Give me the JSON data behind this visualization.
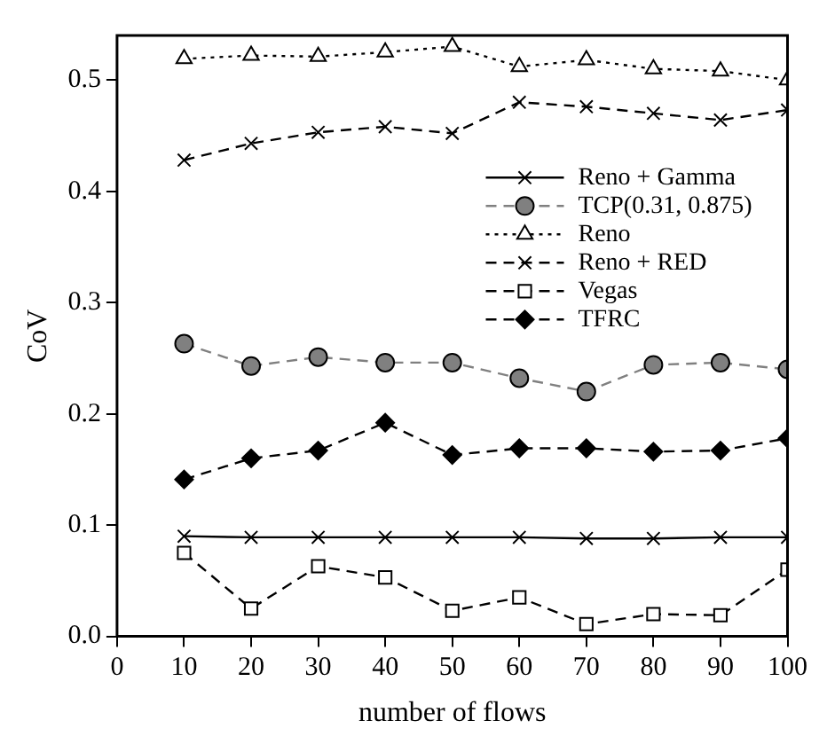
{
  "chart_data": {
    "type": "line",
    "xlabel": "number of flows",
    "ylabel": "CoV",
    "x": [
      10,
      20,
      30,
      40,
      50,
      60,
      70,
      80,
      90,
      100
    ],
    "xlim": [
      0,
      100
    ],
    "xticks": [
      0,
      10,
      20,
      30,
      40,
      50,
      60,
      70,
      80,
      90,
      100
    ],
    "ylim": [
      0,
      0.54
    ],
    "yticks": [
      {
        "value": 0,
        "label": "0.0"
      },
      {
        "value": 0.1,
        "label": "0.1"
      },
      {
        "value": 0.2,
        "label": "0.2"
      },
      {
        "value": 0.3,
        "label": "0.3"
      },
      {
        "value": 0.4,
        "label": "0.4"
      },
      {
        "value": 0.5,
        "label": "0.5"
      }
    ],
    "grid": false,
    "legend": "right",
    "series": [
      {
        "name": "Reno + Gamma",
        "color": "#000000",
        "marker": "cross",
        "line_style": "solid",
        "values": [
          0.09,
          0.089,
          0.089,
          0.089,
          0.089,
          0.089,
          0.088,
          0.088,
          0.089,
          0.089
        ]
      },
      {
        "name": "TCP(0.31, 0.875)",
        "color": "#808080",
        "marker": "circle",
        "line_style": "dashed",
        "values": [
          0.263,
          0.243,
          0.251,
          0.246,
          0.246,
          0.232,
          0.22,
          0.244,
          0.246,
          0.24
        ]
      },
      {
        "name": "Reno",
        "color": "#000000",
        "marker": "triangle",
        "line_style": "dotted",
        "values": [
          0.519,
          0.522,
          0.521,
          0.525,
          0.53,
          0.512,
          0.518,
          0.51,
          0.508,
          0.5
        ]
      },
      {
        "name": "Reno + RED",
        "color": "#000000",
        "marker": "cross",
        "line_style": "dashed",
        "values": [
          0.428,
          0.443,
          0.453,
          0.458,
          0.452,
          0.48,
          0.476,
          0.47,
          0.464,
          0.473
        ]
      },
      {
        "name": "Vegas",
        "color": "#000000",
        "marker": "square",
        "line_style": "dashed",
        "values": [
          0.075,
          0.025,
          0.063,
          0.053,
          0.023,
          0.035,
          0.011,
          0.02,
          0.019,
          0.06
        ]
      },
      {
        "name": "TFRC",
        "color": "#000000",
        "marker": "diamond",
        "line_style": "dashed",
        "values": [
          0.141,
          0.16,
          0.167,
          0.192,
          0.163,
          0.169,
          0.169,
          0.166,
          0.167,
          0.178
        ]
      }
    ]
  }
}
